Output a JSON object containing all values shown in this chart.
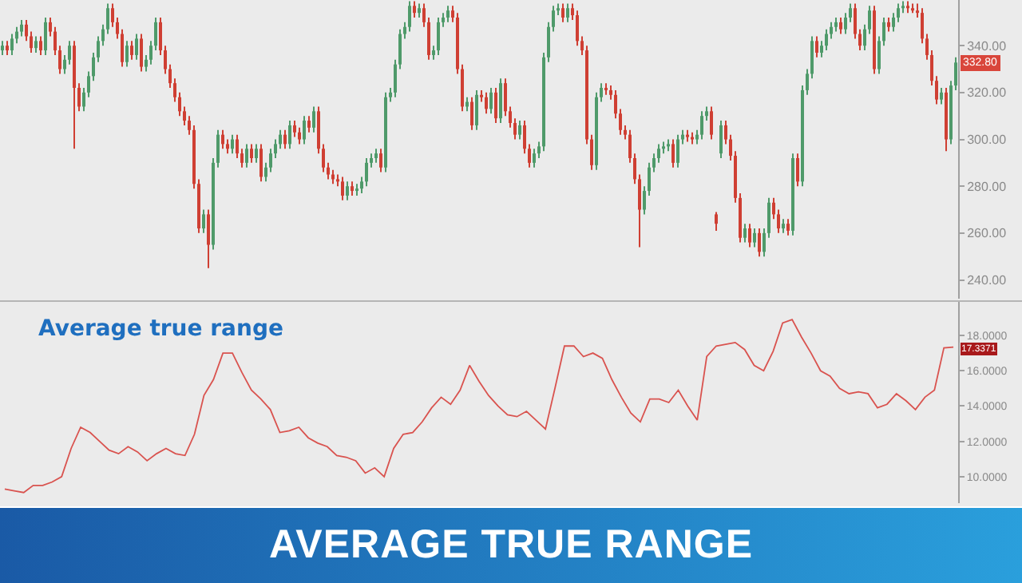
{
  "chart_data": [
    {
      "type": "candlestick",
      "categories": [
        null,
        null,
        null,
        null,
        null,
        null,
        null,
        null,
        null,
        null,
        null,
        null,
        null,
        null,
        null,
        null,
        null,
        null,
        null,
        null,
        null,
        null,
        null,
        null,
        null,
        null,
        null,
        null,
        null,
        null,
        null,
        null,
        null,
        null,
        null,
        null,
        null,
        null,
        null,
        null,
        null,
        null,
        null,
        null,
        null,
        null,
        null,
        null,
        null,
        null,
        null,
        null,
        null,
        null,
        null,
        null,
        null,
        null,
        null,
        null,
        null,
        null,
        null,
        null,
        null,
        null,
        null,
        null,
        null,
        null,
        null,
        null,
        null,
        null,
        null,
        null,
        null,
        null,
        null,
        null,
        null,
        null,
        null,
        null,
        null,
        null,
        null,
        null,
        null,
        null,
        null,
        null,
        null,
        null,
        null,
        null,
        null,
        null,
        null,
        null,
        null,
        null,
        null,
        null,
        null,
        null,
        null,
        null,
        null,
        null,
        null,
        null,
        null,
        null,
        null,
        null,
        null,
        null,
        null,
        null,
        null,
        null,
        null,
        null,
        null,
        null,
        null,
        null,
        null,
        null,
        null,
        null,
        null,
        null,
        null,
        null,
        null,
        null,
        null,
        null,
        null,
        null,
        null,
        null,
        null,
        null,
        null,
        null,
        null,
        null,
        null,
        null,
        null,
        null,
        null,
        null,
        null,
        null,
        null,
        null,
        null,
        null,
        null,
        null,
        null,
        null,
        null,
        null,
        null,
        null,
        null,
        null,
        null,
        null,
        null,
        null,
        null,
        null,
        null,
        null,
        null,
        null,
        null,
        null,
        null,
        null,
        null,
        null,
        null,
        null,
        null,
        null,
        null,
        null,
        null,
        null,
        null,
        null,
        null,
        null
      ],
      "ohlc": [
        [
          338,
          342,
          336,
          340
        ],
        [
          340,
          342,
          336,
          338
        ],
        [
          338,
          345,
          336,
          343
        ],
        [
          343,
          348,
          341,
          346
        ],
        [
          346,
          351,
          344,
          349
        ],
        [
          349,
          351,
          342,
          344
        ],
        [
          344,
          346,
          337,
          339
        ],
        [
          339,
          344,
          337,
          342
        ],
        [
          342,
          344,
          336,
          338
        ],
        [
          338,
          352,
          336,
          350
        ],
        [
          350,
          352,
          344,
          346
        ],
        [
          346,
          348,
          336,
          338
        ],
        [
          338,
          340,
          328,
          330
        ],
        [
          330,
          336,
          328,
          334
        ],
        [
          334,
          342,
          332,
          340
        ],
        [
          340,
          342,
          296,
          322
        ],
        [
          322,
          324,
          312,
          314
        ],
        [
          314,
          322,
          312,
          320
        ],
        [
          320,
          329,
          318,
          327
        ],
        [
          327,
          337,
          325,
          335
        ],
        [
          335,
          344,
          333,
          342
        ],
        [
          342,
          349,
          340,
          347
        ],
        [
          347,
          358,
          345,
          356
        ],
        [
          356,
          358,
          348,
          350
        ],
        [
          350,
          352,
          343,
          345
        ],
        [
          345,
          347,
          331,
          333
        ],
        [
          333,
          342,
          331,
          340
        ],
        [
          340,
          342,
          334,
          336
        ],
        [
          336,
          345,
          334,
          343
        ],
        [
          343,
          345,
          329,
          331
        ],
        [
          331,
          336,
          329,
          334
        ],
        [
          334,
          342,
          332,
          340
        ],
        [
          340,
          352,
          338,
          350
        ],
        [
          350,
          352,
          336,
          338
        ],
        [
          338,
          340,
          328,
          330
        ],
        [
          330,
          332,
          322,
          324
        ],
        [
          324,
          326,
          316,
          318
        ],
        [
          318,
          320,
          310,
          312
        ],
        [
          312,
          314,
          306,
          308
        ],
        [
          308,
          310,
          302,
          304
        ],
        [
          304,
          306,
          279,
          281
        ],
        [
          281,
          283,
          260,
          262
        ],
        [
          262,
          270,
          260,
          268
        ],
        [
          268,
          270,
          245,
          255
        ],
        [
          255,
          292,
          253,
          290
        ],
        [
          290,
          304,
          288,
          302
        ],
        [
          302,
          304,
          296,
          298
        ],
        [
          298,
          300,
          294,
          296
        ],
        [
          296,
          302,
          294,
          300
        ],
        [
          300,
          302,
          292,
          294
        ],
        [
          294,
          296,
          288,
          290
        ],
        [
          290,
          298,
          288,
          296
        ],
        [
          296,
          298,
          290,
          292
        ],
        [
          292,
          298,
          290,
          296
        ],
        [
          296,
          298,
          282,
          284
        ],
        [
          284,
          290,
          282,
          288
        ],
        [
          288,
          296,
          286,
          294
        ],
        [
          294,
          300,
          292,
          298
        ],
        [
          298,
          304,
          296,
          302
        ],
        [
          302,
          304,
          296,
          298
        ],
        [
          298,
          308,
          296,
          306
        ],
        [
          306,
          308,
          301,
          303
        ],
        [
          303,
          305,
          298,
          300
        ],
        [
          300,
          310,
          298,
          308
        ],
        [
          308,
          310,
          303,
          305
        ],
        [
          305,
          314,
          303,
          312
        ],
        [
          312,
          314,
          294,
          296
        ],
        [
          296,
          298,
          286,
          288
        ],
        [
          288,
          290,
          283,
          285
        ],
        [
          285,
          287,
          281,
          283
        ],
        [
          283,
          285,
          280,
          282
        ],
        [
          282,
          284,
          274,
          276
        ],
        [
          276,
          282,
          274,
          280
        ],
        [
          280,
          282,
          276,
          278
        ],
        [
          278,
          281,
          276,
          279
        ],
        [
          279,
          284,
          277,
          282
        ],
        [
          282,
          292,
          280,
          290
        ],
        [
          290,
          294,
          288,
          292
        ],
        [
          292,
          296,
          290,
          294
        ],
        [
          294,
          296,
          286,
          288
        ],
        [
          288,
          320,
          286,
          318
        ],
        [
          318,
          322,
          316,
          320
        ],
        [
          320,
          334,
          318,
          332
        ],
        [
          332,
          347,
          330,
          345
        ],
        [
          345,
          350,
          343,
          348
        ],
        [
          348,
          359,
          346,
          357
        ],
        [
          357,
          359,
          352,
          354
        ],
        [
          354,
          358,
          352,
          356
        ],
        [
          356,
          358,
          348,
          350
        ],
        [
          350,
          352,
          334,
          336
        ],
        [
          336,
          340,
          334,
          338
        ],
        [
          338,
          352,
          336,
          350
        ],
        [
          350,
          354,
          348,
          352
        ],
        [
          352,
          357,
          350,
          355
        ],
        [
          355,
          357,
          350,
          352
        ],
        [
          352,
          354,
          328,
          330
        ],
        [
          330,
          332,
          312,
          314
        ],
        [
          314,
          318,
          312,
          316
        ],
        [
          316,
          318,
          304,
          306
        ],
        [
          306,
          321,
          304,
          319
        ],
        [
          319,
          321,
          316,
          318
        ],
        [
          318,
          320,
          311,
          313
        ],
        [
          313,
          322,
          311,
          320
        ],
        [
          320,
          322,
          307,
          309
        ],
        [
          309,
          326,
          307,
          324
        ],
        [
          324,
          326,
          310,
          312
        ],
        [
          312,
          314,
          305,
          307
        ],
        [
          307,
          309,
          300,
          302
        ],
        [
          302,
          308,
          300,
          306
        ],
        [
          306,
          308,
          294,
          296
        ],
        [
          296,
          298,
          288,
          290
        ],
        [
          290,
          296,
          288,
          294
        ],
        [
          294,
          299,
          292,
          297
        ],
        [
          297,
          337,
          295,
          335
        ],
        [
          335,
          350,
          333,
          348
        ],
        [
          348,
          357,
          346,
          355
        ],
        [
          355,
          358,
          353,
          356
        ],
        [
          356,
          358,
          350,
          352
        ],
        [
          352,
          358,
          350,
          356
        ],
        [
          356,
          358,
          351,
          353
        ],
        [
          353,
          355,
          340,
          342
        ],
        [
          342,
          344,
          336,
          338
        ],
        [
          338,
          340,
          298,
          300
        ],
        [
          300,
          302,
          287,
          289
        ],
        [
          289,
          320,
          287,
          318
        ],
        [
          318,
          324,
          316,
          322
        ],
        [
          322,
          324,
          319,
          321
        ],
        [
          321,
          323,
          317,
          319
        ],
        [
          319,
          321,
          309,
          311
        ],
        [
          311,
          313,
          302,
          304
        ],
        [
          304,
          306,
          300,
          302
        ],
        [
          302,
          304,
          290,
          292
        ],
        [
          292,
          294,
          281,
          283
        ],
        [
          283,
          285,
          254,
          270
        ],
        [
          270,
          280,
          268,
          278
        ],
        [
          278,
          290,
          276,
          288
        ],
        [
          288,
          294,
          286,
          292
        ],
        [
          292,
          298,
          290,
          296
        ],
        [
          296,
          299,
          294,
          297
        ],
        [
          297,
          300,
          295,
          298
        ],
        [
          298,
          300,
          288,
          290
        ],
        [
          290,
          302,
          288,
          300
        ],
        [
          300,
          304,
          298,
          302
        ],
        [
          302,
          304,
          299,
          301
        ],
        [
          301,
          303,
          298,
          300
        ],
        [
          300,
          304,
          298,
          302
        ],
        [
          302,
          312,
          300,
          310
        ],
        [
          310,
          314,
          308,
          312
        ],
        [
          312,
          314,
          300,
          302
        ],
        [
          268,
          269,
          261,
          264
        ],
        [
          294,
          308,
          292,
          306
        ],
        [
          306,
          308,
          298,
          300
        ],
        [
          300,
          302,
          291,
          293
        ],
        [
          293,
          295,
          273,
          275
        ],
        [
          275,
          277,
          256,
          258
        ],
        [
          258,
          264,
          256,
          262
        ],
        [
          262,
          264,
          254,
          256
        ],
        [
          256,
          262,
          254,
          260
        ],
        [
          260,
          262,
          250,
          252
        ],
        [
          252,
          262,
          250,
          260
        ],
        [
          260,
          275,
          258,
          273
        ],
        [
          273,
          275,
          266,
          268
        ],
        [
          268,
          270,
          260,
          262
        ],
        [
          262,
          266,
          260,
          264
        ],
        [
          264,
          266,
          259,
          261
        ],
        [
          261,
          294,
          259,
          292
        ],
        [
          292,
          294,
          280,
          282
        ],
        [
          282,
          323,
          280,
          321
        ],
        [
          321,
          330,
          319,
          328
        ],
        [
          328,
          344,
          326,
          342
        ],
        [
          342,
          344,
          335,
          337
        ],
        [
          337,
          342,
          335,
          340
        ],
        [
          340,
          347,
          338,
          345
        ],
        [
          345,
          350,
          343,
          348
        ],
        [
          348,
          352,
          346,
          350
        ],
        [
          350,
          352,
          345,
          347
        ],
        [
          347,
          354,
          345,
          352
        ],
        [
          352,
          358,
          350,
          356
        ],
        [
          356,
          358,
          343,
          345
        ],
        [
          345,
          347,
          338,
          340
        ],
        [
          340,
          349,
          338,
          347
        ],
        [
          347,
          357,
          345,
          355
        ],
        [
          355,
          357,
          328,
          330
        ],
        [
          330,
          344,
          328,
          342
        ],
        [
          342,
          352,
          340,
          350
        ],
        [
          350,
          352,
          346,
          348
        ],
        [
          348,
          354,
          346,
          352
        ],
        [
          352,
          358,
          350,
          356
        ],
        [
          356,
          359,
          354,
          357
        ],
        [
          357,
          359,
          354,
          356
        ],
        [
          356,
          358,
          354,
          355
        ],
        [
          355,
          358,
          352,
          354
        ],
        [
          354,
          356,
          341,
          343
        ],
        [
          343,
          345,
          334,
          336
        ],
        [
          336,
          338,
          323,
          325
        ],
        [
          325,
          327,
          315,
          317
        ],
        [
          317,
          322,
          315,
          320
        ],
        [
          320,
          322,
          295,
          300
        ],
        [
          300,
          325,
          298,
          323
        ],
        [
          323,
          335,
          321,
          332.8
        ]
      ],
      "ylim": [
        232,
        359.5
      ],
      "yticks": [
        {
          "value": 240,
          "label": "240.00"
        },
        {
          "value": 260,
          "label": "260.00"
        },
        {
          "value": 280,
          "label": "280.00"
        },
        {
          "value": 300,
          "label": "300.00"
        },
        {
          "value": 320,
          "label": "320.00"
        },
        {
          "value": 340,
          "label": "340.00"
        }
      ],
      "annotations": [
        {
          "text": "332.80",
          "y": 332.8
        }
      ],
      "tick_labels": "y"
    },
    {
      "type": "line",
      "title": "Average true range",
      "categories": [
        null,
        null,
        null,
        null,
        null,
        null,
        null,
        null,
        null,
        null,
        null,
        null,
        null,
        null,
        null,
        null,
        null,
        null,
        null,
        null,
        null,
        null,
        null,
        null,
        null,
        null,
        null,
        null,
        null,
        null,
        null,
        null,
        null,
        null,
        null,
        null,
        null,
        null,
        null,
        null,
        null,
        null,
        null,
        null,
        null,
        null,
        null,
        null,
        null,
        null,
        null,
        null,
        null,
        null,
        null,
        null,
        null,
        null,
        null,
        null,
        null,
        null,
        null,
        null,
        null,
        null,
        null,
        null,
        null,
        null,
        null,
        null,
        null,
        null,
        null,
        null,
        null,
        null,
        null,
        null,
        null,
        null,
        null,
        null,
        null,
        null,
        null,
        null,
        null,
        null,
        null,
        null,
        null,
        null,
        null,
        null,
        null,
        null,
        null,
        null,
        null
      ],
      "series": [
        {
          "color": "#d9534f",
          "values": [
            9.3,
            9.2,
            9.1,
            9.5,
            9.5,
            9.7,
            10.0,
            11.6,
            12.8,
            12.5,
            12.0,
            11.5,
            11.3,
            11.7,
            11.4,
            10.9,
            11.3,
            11.6,
            11.3,
            11.2,
            12.4,
            14.6,
            15.5,
            17.0,
            17.0,
            15.9,
            14.9,
            14.4,
            13.8,
            12.5,
            12.6,
            12.8,
            12.2,
            11.9,
            11.7,
            11.2,
            11.1,
            10.9,
            10.2,
            10.5,
            10.0,
            11.6,
            12.4,
            12.5,
            13.1,
            13.9,
            14.5,
            14.1,
            14.9,
            16.3,
            15.4,
            14.6,
            14.0,
            13.5,
            13.4,
            13.7,
            13.2,
            12.7,
            15.0,
            17.4,
            17.4,
            16.8,
            17.0,
            16.7,
            15.5,
            14.5,
            13.6,
            13.1,
            14.4,
            14.4,
            14.2,
            14.9,
            14.0,
            13.2,
            16.8,
            17.4,
            17.5,
            17.6,
            17.2,
            16.3,
            16.0,
            17.1,
            18.7,
            18.9,
            17.9,
            17.0,
            16.0,
            15.7,
            15.0,
            14.7,
            14.8,
            14.7,
            13.9,
            14.1,
            14.7,
            14.3,
            13.8,
            14.5,
            14.9,
            17.3,
            17.3371
          ]
        }
      ],
      "ylim": [
        8.5,
        19.9
      ],
      "yticks": [
        {
          "value": 10,
          "label": "10.0000"
        },
        {
          "value": 12,
          "label": "12.0000"
        },
        {
          "value": 14,
          "label": "14.0000"
        },
        {
          "value": 16,
          "label": "16.0000"
        },
        {
          "value": 18,
          "label": "18.0000"
        }
      ],
      "annotations": [
        {
          "text": "17.3371",
          "y": 17.3371
        }
      ],
      "tick_labels": "y"
    },
    {
      "type": "other",
      "title": "AVERAGE TRUE RANGE"
    }
  ]
}
